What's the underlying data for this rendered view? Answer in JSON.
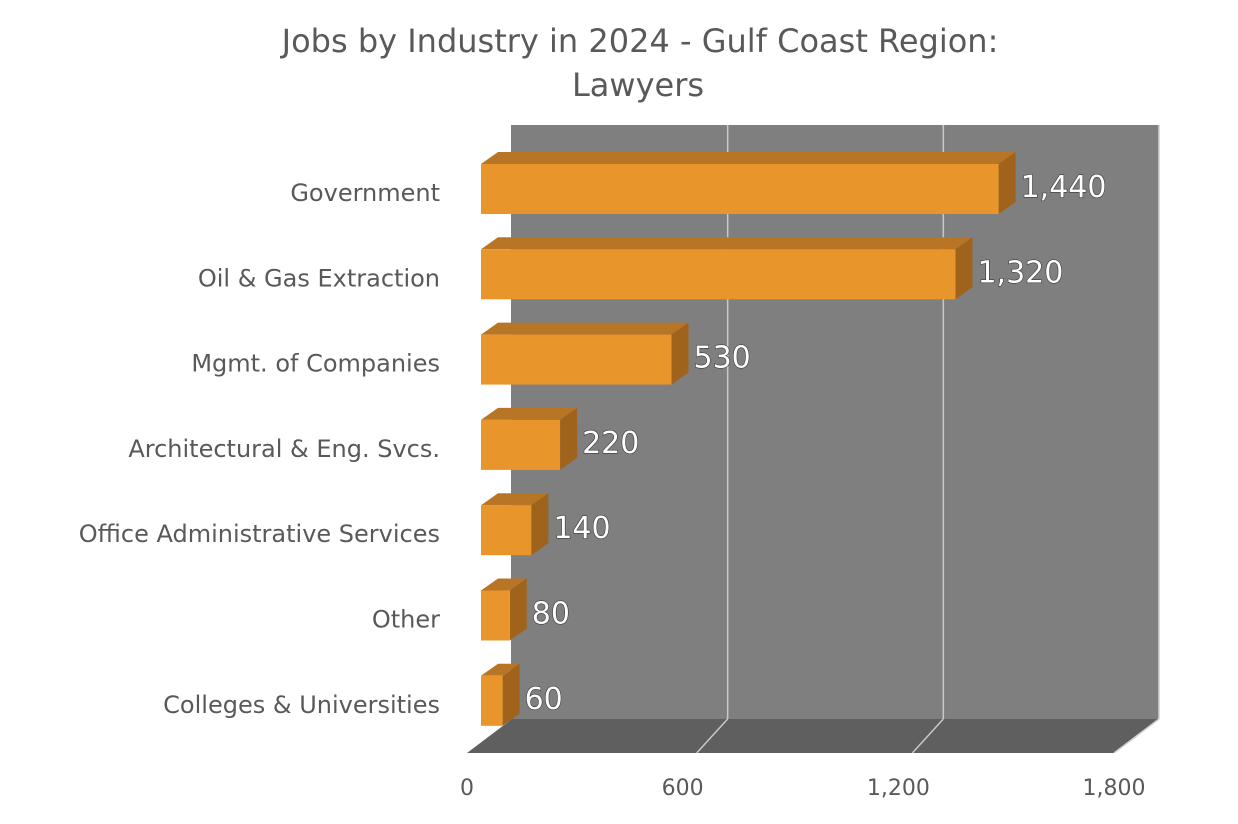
{
  "chart_data": {
    "type": "bar",
    "orientation": "horizontal",
    "three_d": true,
    "title": "Jobs by Industry in 2024 - Gulf Coast Region:",
    "subtitle": "Lawyers",
    "categories": [
      "Government",
      "Oil & Gas Extraction",
      "Mgmt. of Companies",
      "Architectural & Eng. Svcs.",
      "Office Administrative Services",
      "Other",
      "Colleges & Universities"
    ],
    "values": [
      1440,
      1320,
      530,
      220,
      140,
      80,
      60
    ],
    "data_labels": [
      "1,440",
      "1,320",
      "530",
      "220",
      "140",
      "80",
      "60"
    ],
    "xlim": [
      0,
      1800
    ],
    "xticks": [
      0,
      600,
      1200,
      1800
    ],
    "xtick_labels": [
      "0",
      "600",
      "1,200",
      "1,800"
    ],
    "xlabel": "",
    "ylabel": "",
    "grid": true,
    "legend": "none",
    "colors": {
      "bar_front": "#E8952C",
      "bar_top": "#B87525",
      "bar_side": "#A0631C",
      "back_wall": "#7F7F7F",
      "floor": "#5F5F5F",
      "gridline": "#C8C8C8",
      "text": "#595959"
    }
  }
}
